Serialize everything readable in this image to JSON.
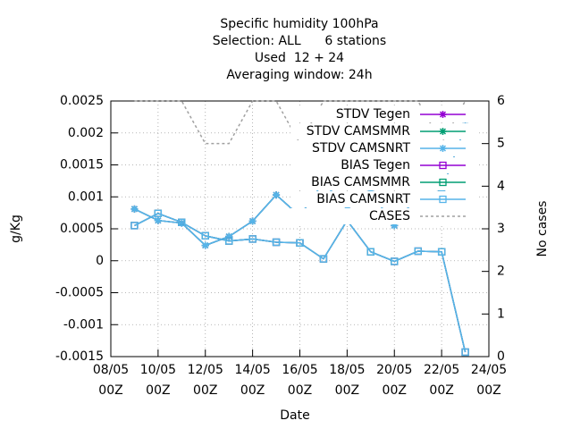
{
  "chart_data": {
    "type": "line",
    "title": [
      "Specific humidity 100hPa",
      "Selection: ALL      6 stations",
      "Used  12 + 24",
      "Averaging window: 24h"
    ],
    "x_label": "Date",
    "y_label": "g/Kg",
    "y2_label": "No cases",
    "x": [
      9,
      10,
      11,
      12,
      13,
      14,
      15,
      16,
      17,
      18,
      19,
      20,
      21,
      22,
      23
    ],
    "xlim": [
      8,
      24
    ],
    "xticks": [
      {
        "value": 8,
        "label": "08/05 00Z"
      },
      {
        "value": 10,
        "label": "10/05 00Z"
      },
      {
        "value": 12,
        "label": "12/05 00Z"
      },
      {
        "value": 14,
        "label": "14/05 00Z"
      },
      {
        "value": 16,
        "label": "16/05 00Z"
      },
      {
        "value": 18,
        "label": "18/05 00Z"
      },
      {
        "value": 20,
        "label": "20/05 00Z"
      },
      {
        "value": 22,
        "label": "22/05 00Z"
      },
      {
        "value": 24,
        "label": "24/05 00Z"
      }
    ],
    "ylim": [
      -0.0015,
      0.0025
    ],
    "yticks": [
      -0.0015,
      -0.001,
      -0.0005,
      0,
      0.0005,
      0.001,
      0.0015,
      0.002,
      0.0025
    ],
    "y2lim": [
      0,
      6
    ],
    "y2ticks": [
      0,
      1,
      2,
      3,
      4,
      5,
      6
    ],
    "grid": true,
    "legend": "upper right",
    "series": [
      {
        "name": "STDV Tegen",
        "color": "#9400d3",
        "marker": "star",
        "values": [
          0.00081,
          0.00063,
          0.00059,
          0.00024,
          0.00038,
          0.00062,
          0.00103,
          0.0007,
          0.00123,
          0.00081,
          0.00108,
          0.00055,
          0.00103,
          0.00109,
          0.00211
        ]
      },
      {
        "name": "STDV CAMSMMR",
        "color": "#009e73",
        "marker": "star",
        "values": [
          0.00081,
          0.00063,
          0.00059,
          0.00024,
          0.00038,
          0.00062,
          0.00103,
          0.0007,
          0.00123,
          0.00081,
          0.00108,
          0.00055,
          0.00103,
          0.00109,
          0.00211
        ]
      },
      {
        "name": "STDV CAMSNRT",
        "color": "#56b4e9",
        "marker": "star",
        "values": [
          0.00081,
          0.00063,
          0.00059,
          0.00024,
          0.00038,
          0.00062,
          0.00103,
          0.0007,
          0.00123,
          0.00081,
          0.00108,
          0.00055,
          0.00103,
          0.00109,
          0.00211
        ]
      },
      {
        "name": "BIAS Tegen",
        "color": "#9400d3",
        "marker": "square",
        "values": [
          0.00055,
          0.00074,
          0.0006,
          0.00039,
          0.00031,
          0.00034,
          0.00029,
          0.00028,
          3e-05,
          0.00063,
          0.00014,
          -1e-05,
          0.00015,
          0.00014,
          -0.00143
        ]
      },
      {
        "name": "BIAS CAMSMMR",
        "color": "#009e73",
        "marker": "square",
        "values": [
          0.00055,
          0.00074,
          0.0006,
          0.00039,
          0.00031,
          0.00034,
          0.00029,
          0.00028,
          3e-05,
          0.00063,
          0.00014,
          -1e-05,
          0.00015,
          0.00014,
          -0.00143
        ]
      },
      {
        "name": "BIAS CAMSNRT",
        "color": "#56b4e9",
        "marker": "square",
        "values": [
          0.00055,
          0.00074,
          0.0006,
          0.00039,
          0.00031,
          0.00034,
          0.00029,
          0.00028,
          3e-05,
          0.00063,
          0.00014,
          -1e-05,
          0.00015,
          0.00014,
          -0.00143
        ]
      },
      {
        "name": "CASES",
        "color": "#a0a0a0",
        "axis": "y2",
        "dash": true,
        "values": [
          6,
          6,
          6,
          5,
          5,
          6,
          6,
          5,
          6,
          6,
          6,
          6,
          6,
          5,
          6
        ]
      }
    ]
  }
}
